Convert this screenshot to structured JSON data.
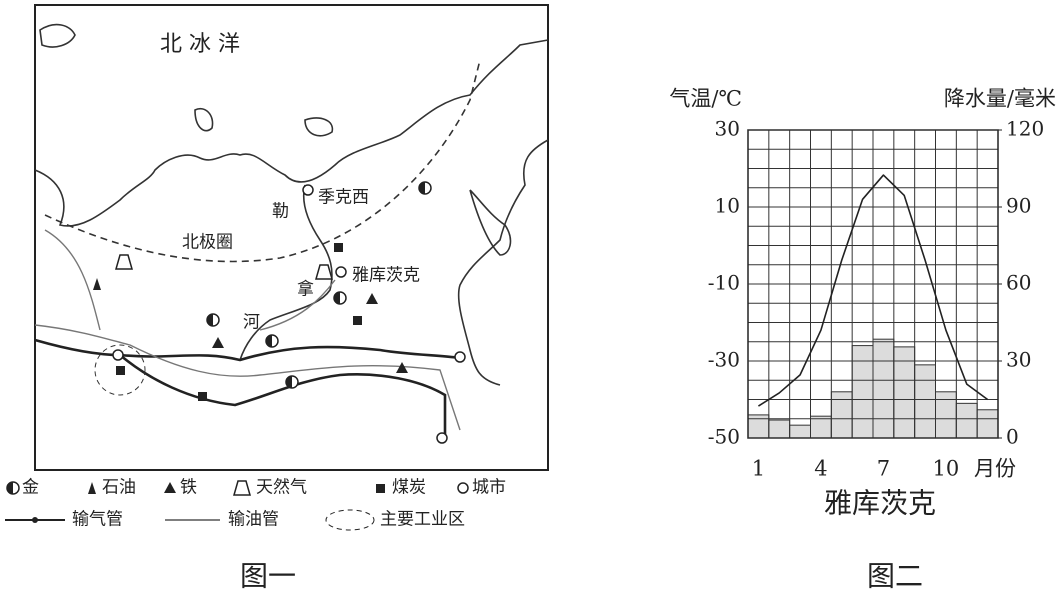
{
  "map": {
    "caption": "图一",
    "labels": {
      "ocean": "北 冰 洋",
      "tiksi": "季克西",
      "le": "勒",
      "arctic_circle": "北极圈",
      "yakutsk": "雅库茨克",
      "na": "拿",
      "he": "河"
    },
    "legend": [
      "金",
      "石油",
      "铁",
      "天然气",
      "煤炭",
      "城市",
      "输气管",
      "输油管",
      "主要工业区"
    ]
  },
  "chart_data": {
    "type": "combo",
    "title": "雅库茨克",
    "caption": "图二",
    "y_label": "气温/℃",
    "y2_label": "降水量/毫米",
    "x_label": "月份",
    "categories": [
      "1",
      null,
      null,
      "4",
      null,
      null,
      "7",
      null,
      null,
      "10",
      null,
      null
    ],
    "ylim": [
      -50,
      30
    ],
    "yticks": [
      30,
      10,
      -10,
      -30,
      -50
    ],
    "y2lim": [
      0,
      120
    ],
    "y2ticks": [
      120,
      90,
      60,
      30,
      0
    ],
    "ygrid": [
      -45,
      -40,
      -35,
      -25,
      -20,
      -15,
      -5,
      0,
      5,
      15,
      20,
      25
    ],
    "series": [
      {
        "type": "bar",
        "axis": "y2",
        "color": "#dcdcdc",
        "values": [
          9,
          7,
          5,
          8.5,
          18,
          36,
          38.5,
          35.5,
          28.5,
          18,
          13.5,
          11
        ]
      },
      {
        "type": "line",
        "color": "#222",
        "values": [
          -41.7,
          -38.3,
          -33.6,
          -22,
          -3.8,
          12,
          18.3,
          13,
          -3.8,
          -22,
          -36,
          -40
        ]
      }
    ]
  }
}
